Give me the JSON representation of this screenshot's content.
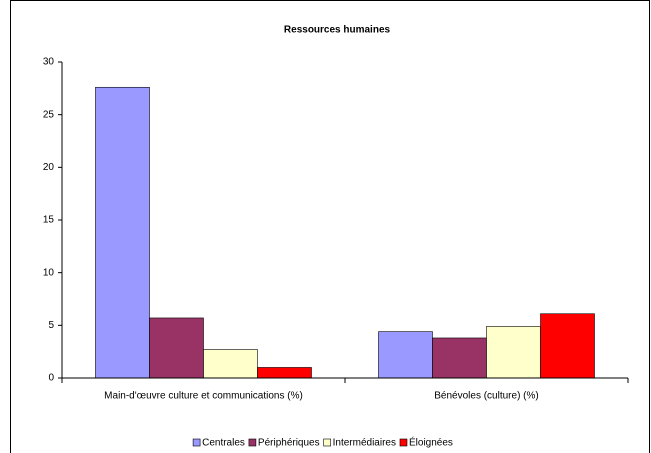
{
  "chart_data": {
    "type": "bar",
    "title": "Ressources humaines",
    "categories": [
      "Main-d'œuvre culture et communications (%)",
      "Bénévoles (culture) (%)"
    ],
    "series": [
      {
        "name": "Centrales",
        "color": "#9999ff",
        "values": [
          27.6,
          4.4
        ]
      },
      {
        "name": "Périphériques",
        "color": "#993366",
        "values": [
          5.7,
          3.8
        ]
      },
      {
        "name": "Intermédiaires",
        "color": "#ffffcc",
        "values": [
          2.7,
          4.9
        ]
      },
      {
        "name": "Éloignées",
        "color": "#ff0000",
        "values": [
          1.0,
          6.1
        ]
      }
    ],
    "ylim": [
      0,
      30
    ],
    "yticks": [
      0,
      5,
      10,
      15,
      20,
      25,
      30
    ],
    "grid": false,
    "legend": "bottom"
  }
}
